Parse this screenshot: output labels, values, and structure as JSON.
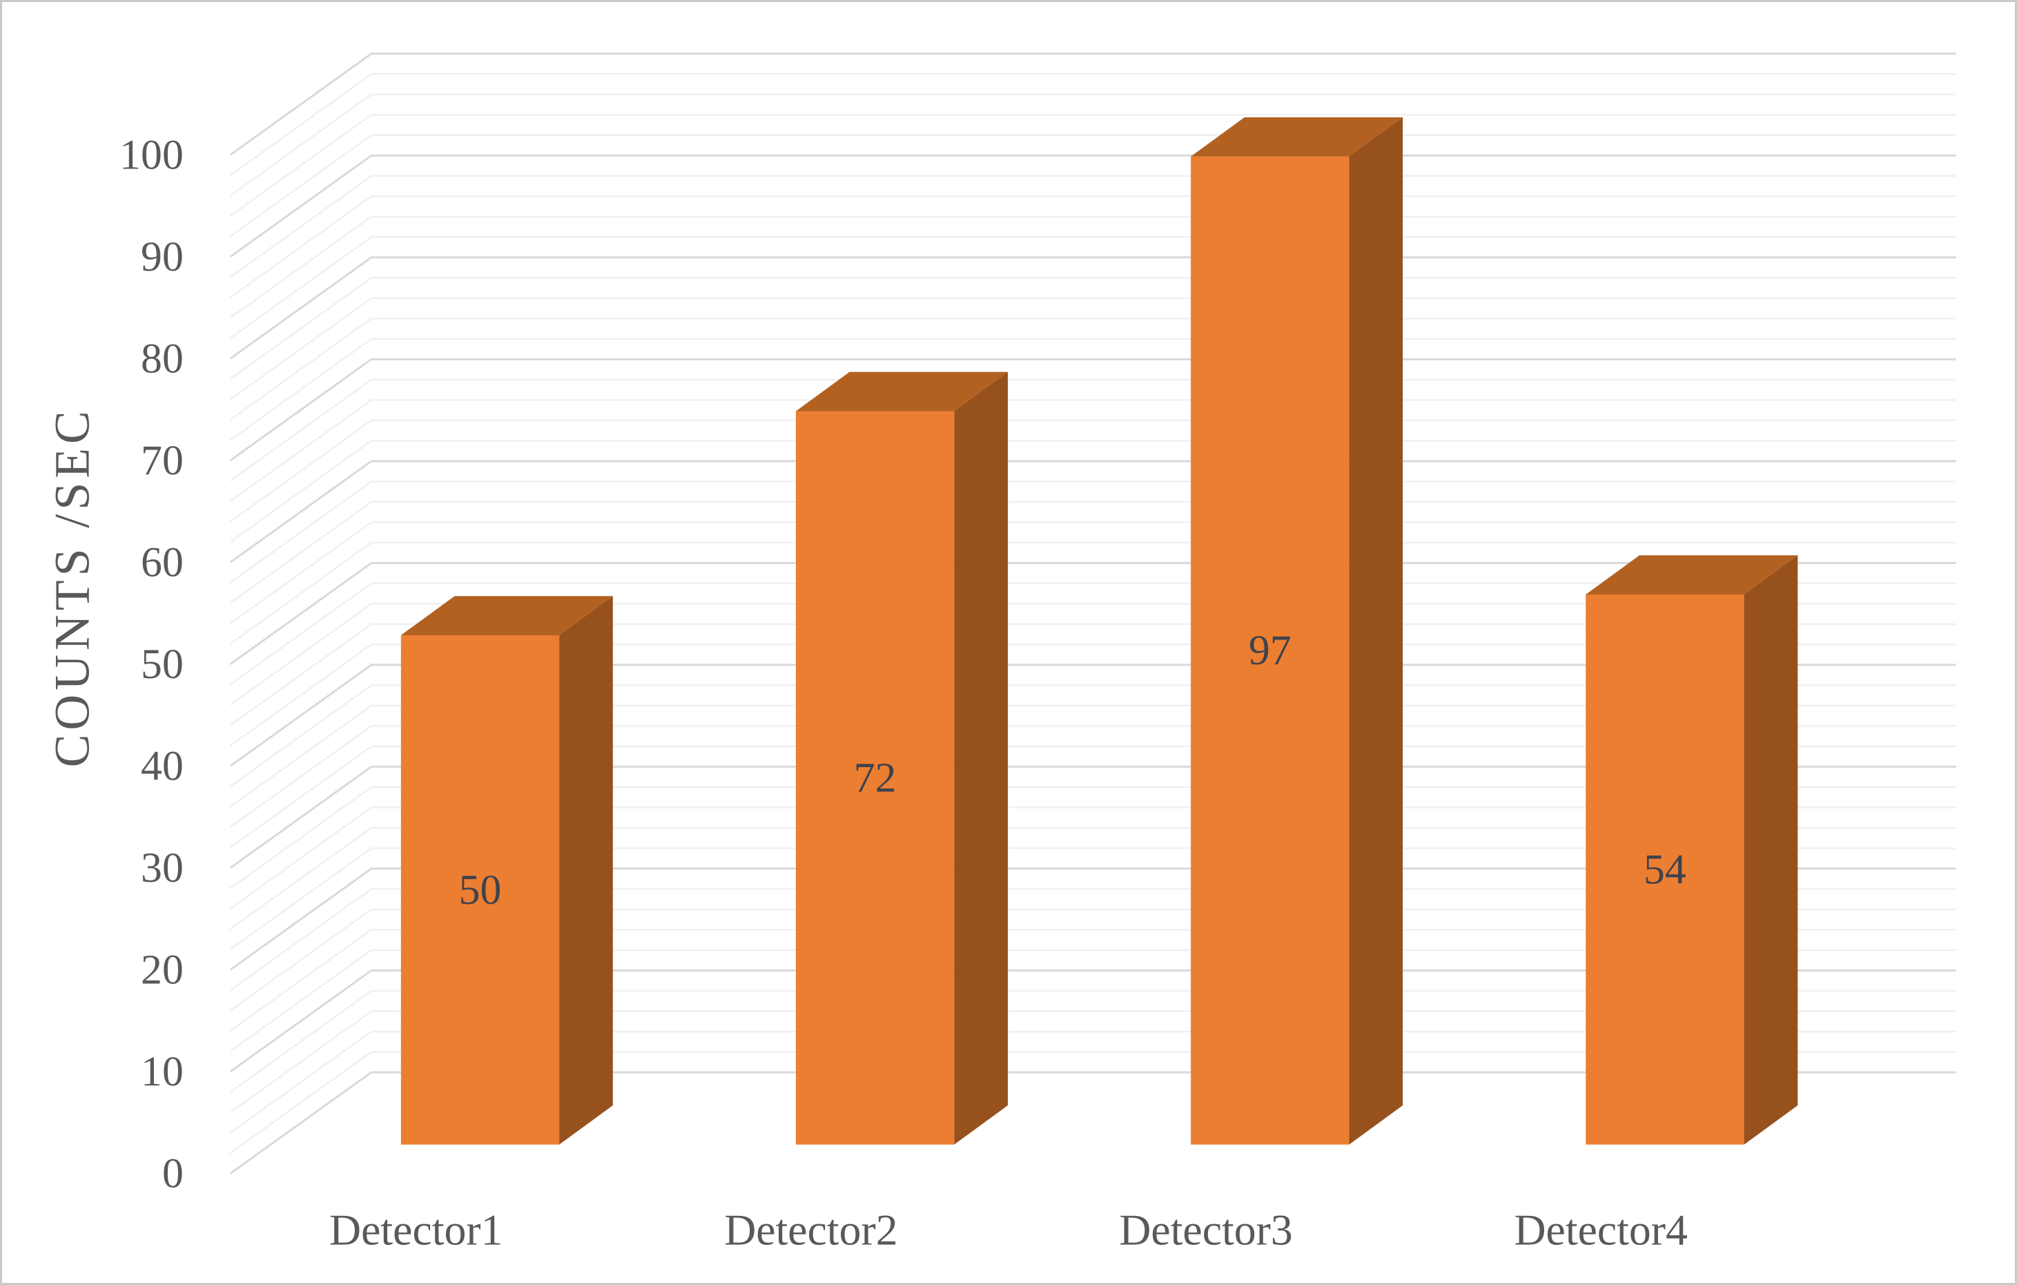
{
  "chart_data": {
    "type": "bar",
    "projection": "3d-column",
    "title": "",
    "categories": [
      "Detector1",
      "Detector2",
      "Detector3",
      "Detector4"
    ],
    "values": [
      50,
      72,
      97,
      54
    ],
    "data_labels": [
      "50",
      "72",
      "97",
      "54"
    ],
    "xlabel": "",
    "ylabel": "COUNTS /SEC",
    "ylim": [
      0,
      100
    ],
    "y_major_unit": 10,
    "y_minor_unit": 2,
    "y_tick_labels": [
      "0",
      "10",
      "20",
      "30",
      "40",
      "50",
      "60",
      "70",
      "80",
      "90",
      "100"
    ],
    "grid": "major and minor horizontal gridlines on 3d back wall and left wall",
    "legend_position": "none",
    "colors": {
      "bar_front": "#ec7e32",
      "bar_top": "#b26121",
      "bar_side": "#97511c",
      "grid_major": "#d9d9d9",
      "grid_minor": "#f0f0f0",
      "axis_text": "#595959",
      "data_label_text": "#3e424d",
      "frame_border": "#c9c9c9",
      "background": "#ffffff"
    }
  }
}
